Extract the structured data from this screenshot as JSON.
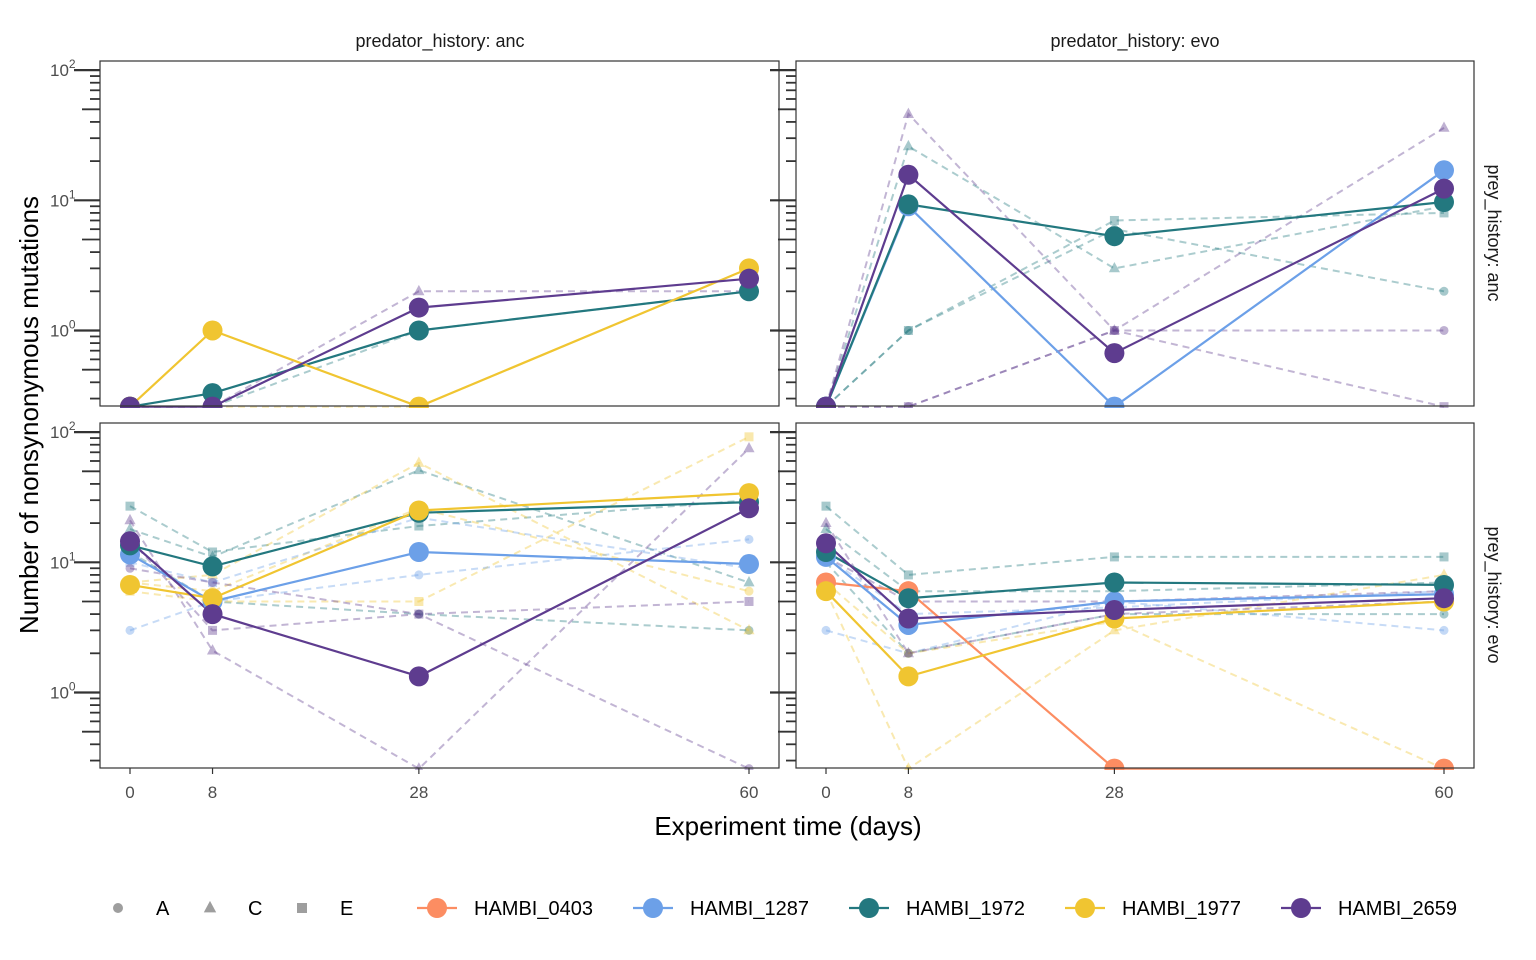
{
  "x_axis_title": "Experiment time (days)",
  "y_axis_title": "Number of nonsynonymous mutations",
  "facet_cols": [
    "predator_history: anc",
    "predator_history: evo"
  ],
  "facet_rows": [
    "prey_history: anc",
    "prey_history: evo"
  ],
  "x_ticks": [
    "0",
    "8",
    "28",
    "60"
  ],
  "y_ticks": [
    {
      "base": "10",
      "exp": "0"
    },
    {
      "base": "10",
      "exp": "1"
    },
    {
      "base": "10",
      "exp": "2"
    }
  ],
  "legend_shapes": [
    {
      "label": "A",
      "shape": "circle"
    },
    {
      "label": "C",
      "shape": "triangle"
    },
    {
      "label": "E",
      "shape": "square"
    }
  ],
  "legend_strains": [
    {
      "label": "HAMBI_0403",
      "color": "#fc8d62"
    },
    {
      "label": "HAMBI_1287",
      "color": "#6ca0e8"
    },
    {
      "label": "HAMBI_1972",
      "color": "#23787f"
    },
    {
      "label": "HAMBI_1977",
      "color": "#f0c531"
    },
    {
      "label": "HAMBI_2659",
      "color": "#5e3c8f"
    }
  ],
  "chart_data": {
    "type": "line",
    "x_scale": "linear",
    "y_scale": "log10",
    "xlim": [
      -1.5,
      61.5
    ],
    "ylim_log10": [
      -0.58,
      2.07
    ],
    "x_breaks": [
      0,
      8,
      28,
      60
    ],
    "y_breaks": [
      1,
      10,
      100
    ],
    "grid": false,
    "legend_position": "bottom",
    "panels": [
      {
        "col": "predator_history: anc",
        "row": "prey_history: anc",
        "means": [
          {
            "strain": "HAMBI_1972",
            "x": [
              0,
              8,
              28,
              60
            ],
            "y": [
              0.26,
              0.33,
              1.0,
              2.0
            ]
          },
          {
            "strain": "HAMBI_1977",
            "x": [
              0,
              8,
              28,
              60
            ],
            "y": [
              0.26,
              1.0,
              0.26,
              3.0
            ]
          },
          {
            "strain": "HAMBI_2659",
            "x": [
              0,
              8,
              28,
              60
            ],
            "y": [
              0.26,
              0.26,
              1.5,
              2.5
            ]
          }
        ],
        "replicates": [
          {
            "strain": "HAMBI_2659",
            "replicate": "C",
            "x": [
              0,
              8,
              28,
              60
            ],
            "y": [
              0.26,
              0.26,
              2.0,
              2.0
            ]
          },
          {
            "strain": "HAMBI_1972",
            "replicate": "A",
            "x": [
              0,
              8,
              28,
              60
            ],
            "y": [
              0.26,
              0.26,
              1.0,
              2.0
            ]
          },
          {
            "strain": "HAMBI_1977",
            "replicate": "A",
            "x": [
              0,
              8,
              28,
              60
            ],
            "y": [
              0.26,
              0.26,
              0.26,
              3.0
            ]
          }
        ]
      },
      {
        "col": "predator_history: evo",
        "row": "prey_history: anc",
        "means": [
          {
            "strain": "HAMBI_1287",
            "x": [
              0,
              8,
              28,
              60
            ],
            "y": [
              0.26,
              9.0,
              0.26,
              17.0
            ]
          },
          {
            "strain": "HAMBI_1972",
            "x": [
              0,
              8,
              28,
              60
            ],
            "y": [
              0.26,
              9.3,
              5.3,
              9.7
            ]
          },
          {
            "strain": "HAMBI_2659",
            "x": [
              0,
              8,
              28,
              60
            ],
            "y": [
              0.26,
              15.7,
              0.67,
              12.3
            ]
          }
        ],
        "replicates": [
          {
            "strain": "HAMBI_1972",
            "replicate": "C",
            "x": [
              0,
              8,
              28,
              60
            ],
            "y": [
              0.26,
              26.0,
              3.0,
              9.0
            ]
          },
          {
            "strain": "HAMBI_1972",
            "replicate": "E",
            "x": [
              0,
              8,
              28,
              60
            ],
            "y": [
              0.26,
              1.0,
              7.0,
              8.0
            ]
          },
          {
            "strain": "HAMBI_1972",
            "replicate": "A",
            "x": [
              0,
              8,
              28,
              60
            ],
            "y": [
              0.26,
              1.0,
              6.0,
              2.0
            ]
          },
          {
            "strain": "HAMBI_2659",
            "replicate": "C",
            "x": [
              0,
              8,
              28,
              60
            ],
            "y": [
              0.26,
              46.0,
              1.0,
              36.0
            ]
          },
          {
            "strain": "HAMBI_2659",
            "replicate": "A",
            "x": [
              0,
              8,
              28,
              60
            ],
            "y": [
              0.26,
              0.26,
              1.0,
              1.0
            ]
          },
          {
            "strain": "HAMBI_2659",
            "replicate": "E",
            "x": [
              0,
              8,
              28,
              60
            ],
            "y": [
              0.26,
              0.26,
              1.0,
              0.26
            ]
          }
        ]
      },
      {
        "col": "predator_history: anc",
        "row": "prey_history: evo",
        "means": [
          {
            "strain": "HAMBI_1287",
            "x": [
              0,
              8,
              28,
              60
            ],
            "y": [
              11.5,
              5.0,
              12.0,
              9.7
            ]
          },
          {
            "strain": "HAMBI_1972",
            "x": [
              0,
              8,
              28,
              60
            ],
            "y": [
              13.5,
              9.3,
              24.0,
              29.0
            ]
          },
          {
            "strain": "HAMBI_1977",
            "x": [
              0,
              8,
              28,
              60
            ],
            "y": [
              6.7,
              5.3,
              25.0,
              34.0
            ]
          },
          {
            "strain": "HAMBI_2659",
            "x": [
              0,
              8,
              28,
              60
            ],
            "y": [
              14.5,
              4.0,
              1.33,
              26.0
            ]
          }
        ],
        "replicates": [
          {
            "strain": "HAMBI_1972",
            "replicate": "E",
            "x": [
              0,
              8,
              28,
              60
            ],
            "y": [
              27.0,
              12.0,
              19.0,
              30.0
            ]
          },
          {
            "strain": "HAMBI_1972",
            "replicate": "C",
            "x": [
              0,
              8,
              28,
              60
            ],
            "y": [
              18.0,
              11.0,
              51.0,
              7.0
            ]
          },
          {
            "strain": "HAMBI_1972",
            "replicate": "A",
            "x": [
              0,
              8,
              28,
              60
            ],
            "y": [
              12.0,
              5.0,
              4.0,
              3.0
            ]
          },
          {
            "strain": "HAMBI_1977",
            "replicate": "C",
            "x": [
              0,
              8,
              28,
              60
            ],
            "y": [
              7.0,
              8.0,
              58.0,
              3.0
            ]
          },
          {
            "strain": "HAMBI_1977",
            "replicate": "E",
            "x": [
              0,
              8,
              28,
              60
            ],
            "y": [
              6.0,
              5.0,
              5.0,
              92.0
            ]
          },
          {
            "strain": "HAMBI_1977",
            "replicate": "A",
            "x": [
              0,
              8,
              28,
              60
            ],
            "y": [
              7.0,
              6.0,
              26.0,
              6.0
            ]
          },
          {
            "strain": "HAMBI_1287",
            "replicate": "A",
            "x": [
              0,
              8,
              28,
              60
            ],
            "y": [
              3.0,
              5.0,
              8.0,
              15.0
            ]
          },
          {
            "strain": "HAMBI_1287",
            "replicate": "E",
            "x": [
              0,
              8,
              28,
              60
            ],
            "y": [
              10.0,
              7.0,
              22.0,
              9.0
            ]
          },
          {
            "strain": "HAMBI_2659",
            "replicate": "C",
            "x": [
              0,
              8,
              28,
              60
            ],
            "y": [
              21.0,
              2.1,
              0.26,
              75.0
            ]
          },
          {
            "strain": "HAMBI_2659",
            "replicate": "E",
            "x": [
              0,
              8,
              28,
              60
            ],
            "y": [
              15.0,
              3.0,
              4.0,
              5.0
            ]
          },
          {
            "strain": "HAMBI_2659",
            "replicate": "A",
            "x": [
              0,
              8,
              28,
              60
            ],
            "y": [
              9.0,
              7.0,
              4.0,
              0.26
            ]
          }
        ]
      },
      {
        "col": "predator_history: evo",
        "row": "prey_history: evo",
        "means": [
          {
            "strain": "HAMBI_0403",
            "x": [
              0,
              8,
              28,
              60
            ],
            "y": [
              7.0,
              6.0,
              0.26,
              0.26
            ]
          },
          {
            "strain": "HAMBI_1287",
            "x": [
              0,
              8,
              28,
              60
            ],
            "y": [
              11.0,
              3.3,
              5.0,
              5.7
            ]
          },
          {
            "strain": "HAMBI_1972",
            "x": [
              0,
              8,
              28,
              60
            ],
            "y": [
              12.0,
              5.3,
              7.0,
              6.7
            ]
          },
          {
            "strain": "HAMBI_1977",
            "x": [
              0,
              8,
              28,
              60
            ],
            "y": [
              6.0,
              1.33,
              3.7,
              5.0
            ]
          },
          {
            "strain": "HAMBI_2659",
            "x": [
              0,
              8,
              28,
              60
            ],
            "y": [
              14.0,
              3.7,
              4.3,
              5.3
            ]
          }
        ],
        "replicates": [
          {
            "strain": "HAMBI_1972",
            "replicate": "E",
            "x": [
              0,
              8,
              28,
              60
            ],
            "y": [
              27.0,
              8.0,
              11.0,
              11.0
            ]
          },
          {
            "strain": "HAMBI_1972",
            "replicate": "C",
            "x": [
              0,
              8,
              28,
              60
            ],
            "y": [
              18.0,
              6.0,
              6.0,
              7.0
            ]
          },
          {
            "strain": "HAMBI_1972",
            "replicate": "A",
            "x": [
              0,
              8,
              28,
              60
            ],
            "y": [
              10.0,
              2.0,
              4.0,
              4.0
            ]
          },
          {
            "strain": "HAMBI_1287",
            "replicate": "A",
            "x": [
              0,
              8,
              28,
              60
            ],
            "y": [
              3.0,
              2.0,
              5.0,
              3.0
            ]
          },
          {
            "strain": "HAMBI_1287",
            "replicate": "E",
            "x": [
              0,
              8,
              28,
              60
            ],
            "y": [
              11.0,
              4.0,
              4.5,
              6.0
            ]
          },
          {
            "strain": "HAMBI_1977",
            "replicate": "C",
            "x": [
              0,
              8,
              28,
              60
            ],
            "y": [
              6.0,
              0.26,
              3.0,
              8.0
            ]
          },
          {
            "strain": "HAMBI_1977",
            "replicate": "A",
            "x": [
              0,
              8,
              28,
              60
            ],
            "y": [
              7.0,
              2.0,
              3.5,
              0.26
            ]
          },
          {
            "strain": "HAMBI_2659",
            "replicate": "C",
            "x": [
              0,
              8,
              28,
              60
            ],
            "y": [
              20.0,
              2.0,
              4.0,
              5.0
            ]
          },
          {
            "strain": "HAMBI_2659",
            "replicate": "E",
            "x": [
              0,
              8,
              28,
              60
            ],
            "y": [
              11.0,
              5.0,
              5.0,
              6.0
            ]
          }
        ]
      }
    ]
  }
}
